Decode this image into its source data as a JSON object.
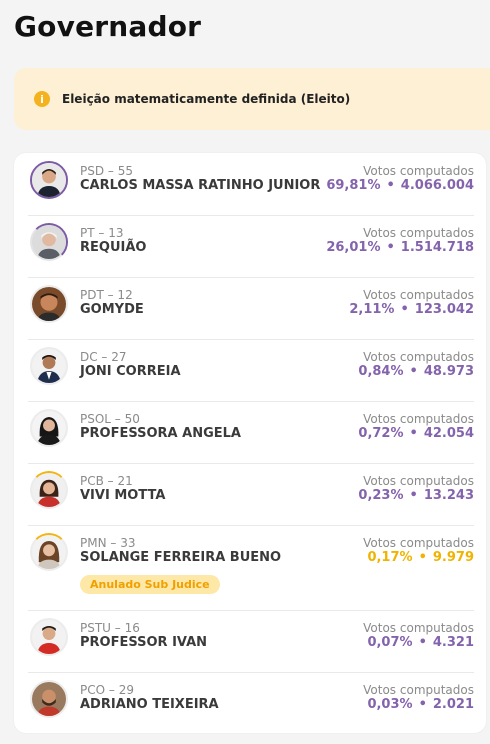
{
  "page_title": "Governador",
  "alert": {
    "icon": "info-icon",
    "icon_glyph": "i",
    "text": "Eleição matematicamente definida (Eleito)"
  },
  "votes_label": "Votos computados",
  "dot": "•",
  "colors": {
    "accent": "#8463ad",
    "gold": "#f0b400",
    "alert_bg": "#fdf0d4"
  },
  "candidates": [
    {
      "party": "PSD – 55",
      "name": "CARLOS MASSA RATINHO JUNIOR",
      "percent": "69,81%",
      "votes": "4.066.004",
      "progress": 0.6981
    },
    {
      "party": "PT – 13",
      "name": "REQUIÃO",
      "percent": "26,01%",
      "votes": "1.514.718",
      "progress": 0.2601
    },
    {
      "party": "PDT – 12",
      "name": "GOMYDE",
      "percent": "2,11%",
      "votes": "123.042",
      "progress": 0.0211
    },
    {
      "party": "DC – 27",
      "name": "JONI CORREIA",
      "percent": "0,84%",
      "votes": "48.973",
      "progress": 0.0084
    },
    {
      "party": "PSOL – 50",
      "name": "PROFESSORA ANGELA",
      "percent": "0,72%",
      "votes": "42.054",
      "progress": 0.0072
    },
    {
      "party": "PCB – 21",
      "name": "VIVI MOTTA",
      "percent": "0,23%",
      "votes": "13.243",
      "progress": 0.0023
    },
    {
      "party": "PMN – 33",
      "name": "SOLANGE FERREIRA BUENO",
      "percent": "0,17%",
      "votes": "9.979",
      "progress": 0.0017,
      "badge": "Anulado Sub Judice"
    },
    {
      "party": "PSTU – 16",
      "name": "PROFESSOR IVAN",
      "percent": "0,07%",
      "votes": "4.321",
      "progress": 0.0007
    },
    {
      "party": "PCO – 29",
      "name": "ADRIANO TEIXEIRA",
      "percent": "0,03%",
      "votes": "2.021",
      "progress": 0.0003
    }
  ]
}
